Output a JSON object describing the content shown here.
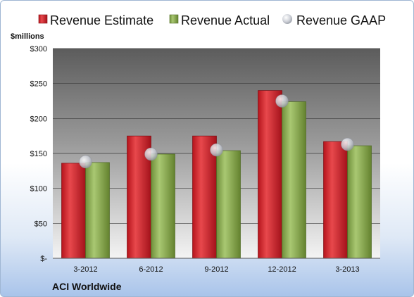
{
  "chart_data": {
    "type": "bar",
    "company": "ACI Worldwide",
    "y_unit_label": "$millions",
    "categories": [
      "3-2012",
      "6-2012",
      "9-2012",
      "12-2012",
      "3-2013"
    ],
    "series": [
      {
        "name": "Revenue Estimate",
        "type": "bar",
        "values": [
          136,
          175,
          175,
          240,
          167
        ],
        "color": "#cc1f27"
      },
      {
        "name": "Revenue Actual",
        "type": "bar",
        "values": [
          137,
          149,
          154,
          224,
          161
        ],
        "color": "#8fb157"
      },
      {
        "name": "Revenue GAAP",
        "type": "marker",
        "values": [
          138,
          149,
          155,
          225,
          163
        ],
        "color": "#c9ccd4"
      }
    ],
    "ylim": [
      0,
      300
    ],
    "y_ticks": [
      0,
      50,
      100,
      150,
      200,
      250,
      300
    ],
    "y_tick_labels": [
      "$-",
      "$50",
      "$100",
      "$150",
      "$200",
      "$250",
      "$300"
    ],
    "grid": true,
    "legend_position": "top"
  }
}
